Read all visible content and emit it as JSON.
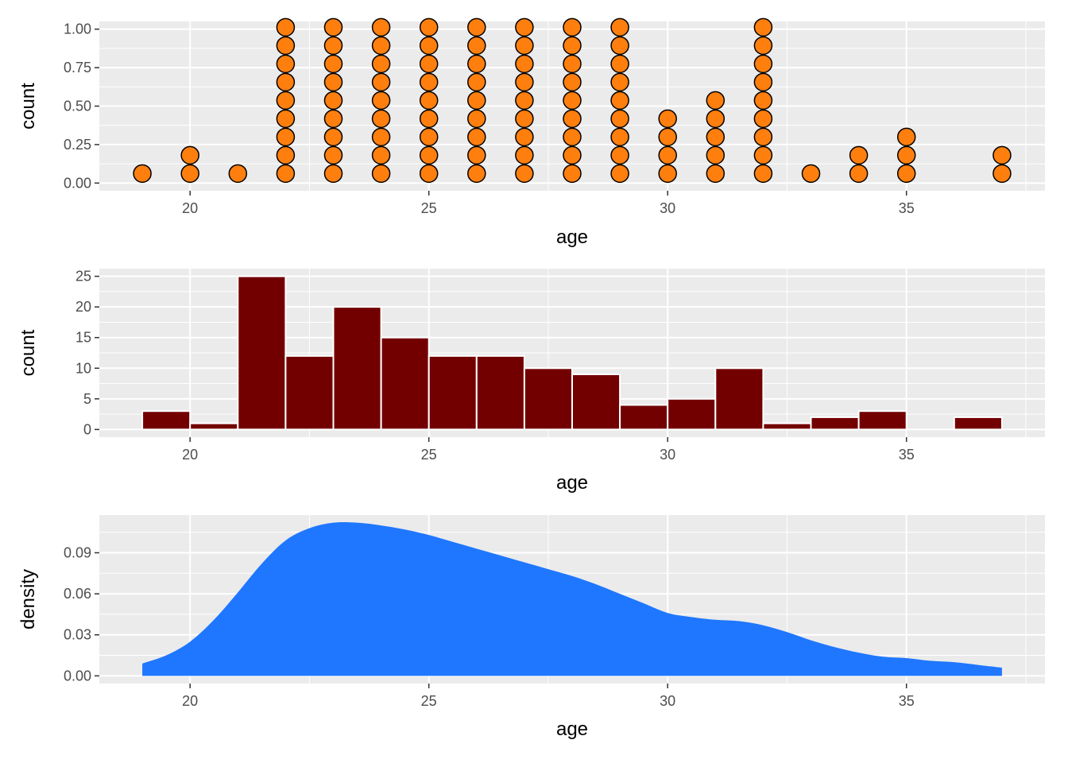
{
  "chart_data": [
    {
      "type": "dotplot",
      "xlabel": "age",
      "ylabel": "count",
      "xlim": [
        18.1,
        37.9
      ],
      "ylim": [
        -0.05,
        1.05
      ],
      "x_ticks": [
        20,
        25,
        30,
        35
      ],
      "y_ticks": [
        0,
        0.25,
        0.5,
        0.75,
        1
      ],
      "y_tick_labels": [
        "0.00",
        "0.25",
        "0.50",
        "0.75",
        "1.00"
      ],
      "grid": true,
      "fill": "#FF7F0E",
      "stroke": "#000000",
      "stacks": [
        {
          "x": 19,
          "count": 1
        },
        {
          "x": 20,
          "count": 2
        },
        {
          "x": 21,
          "count": 1
        },
        {
          "x": 22,
          "count": 9
        },
        {
          "x": 23,
          "count": 9
        },
        {
          "x": 24,
          "count": 9
        },
        {
          "x": 25,
          "count": 9
        },
        {
          "x": 26,
          "count": 9
        },
        {
          "x": 27,
          "count": 9
        },
        {
          "x": 28,
          "count": 9
        },
        {
          "x": 29,
          "count": 9
        },
        {
          "x": 30,
          "count": 4
        },
        {
          "x": 31,
          "count": 5
        },
        {
          "x": 32,
          "count": 9
        },
        {
          "x": 33,
          "count": 1
        },
        {
          "x": 34,
          "count": 2
        },
        {
          "x": 35,
          "count": 3
        },
        {
          "x": 37,
          "count": 2
        }
      ]
    },
    {
      "type": "bar",
      "xlabel": "age",
      "ylabel": "count",
      "xlim": [
        18.1,
        37.9
      ],
      "ylim": [
        -1.25,
        26.25
      ],
      "x_ticks": [
        20,
        25,
        30,
        35
      ],
      "y_ticks": [
        0,
        5,
        10,
        15,
        20,
        25
      ],
      "y_tick_labels": [
        "0",
        "5",
        "10",
        "15",
        "20",
        "25"
      ],
      "grid": true,
      "fill": "#730000",
      "stroke": "#FFFFFF",
      "bins": [
        {
          "x0": 19,
          "x1": 20,
          "count": 3
        },
        {
          "x0": 20,
          "x1": 21,
          "count": 1
        },
        {
          "x0": 21,
          "x1": 22,
          "count": 25
        },
        {
          "x0": 22,
          "x1": 23,
          "count": 12
        },
        {
          "x0": 23,
          "x1": 24,
          "count": 20
        },
        {
          "x0": 24,
          "x1": 25,
          "count": 15
        },
        {
          "x0": 25,
          "x1": 26,
          "count": 12
        },
        {
          "x0": 26,
          "x1": 27,
          "count": 12
        },
        {
          "x0": 27,
          "x1": 28,
          "count": 10
        },
        {
          "x0": 28,
          "x1": 29,
          "count": 9
        },
        {
          "x0": 29,
          "x1": 30,
          "count": 4
        },
        {
          "x0": 30,
          "x1": 31,
          "count": 5
        },
        {
          "x0": 31,
          "x1": 32,
          "count": 10
        },
        {
          "x0": 32,
          "x1": 33,
          "count": 1
        },
        {
          "x0": 33,
          "x1": 34,
          "count": 2
        },
        {
          "x0": 34,
          "x1": 35,
          "count": 3
        },
        {
          "x0": 35,
          "x1": 36,
          "count": 0
        },
        {
          "x0": 36,
          "x1": 37,
          "count": 2
        }
      ]
    },
    {
      "type": "area",
      "xlabel": "age",
      "ylabel": "density",
      "xlim": [
        18.1,
        37.9
      ],
      "ylim": [
        -0.0056,
        0.1176
      ],
      "x_ticks": [
        20,
        25,
        30,
        35
      ],
      "y_ticks": [
        0,
        0.03,
        0.06,
        0.09
      ],
      "y_tick_labels": [
        "0.00",
        "0.03",
        "0.06",
        "0.09"
      ],
      "grid": true,
      "fill": "#1F77FF",
      "x": [
        19,
        19.5,
        20,
        20.5,
        21,
        21.5,
        22,
        22.5,
        23,
        23.5,
        24,
        24.5,
        25,
        25.5,
        26,
        26.5,
        27,
        27.5,
        28,
        28.5,
        29,
        29.5,
        30,
        30.5,
        31,
        31.5,
        32,
        32.5,
        33,
        33.5,
        34,
        34.5,
        35,
        35.5,
        36,
        36.5,
        37
      ],
      "y": [
        0.009,
        0.015,
        0.025,
        0.041,
        0.061,
        0.082,
        0.099,
        0.108,
        0.112,
        0.112,
        0.11,
        0.107,
        0.103,
        0.098,
        0.093,
        0.088,
        0.083,
        0.078,
        0.073,
        0.067,
        0.06,
        0.053,
        0.046,
        0.043,
        0.041,
        0.04,
        0.037,
        0.032,
        0.026,
        0.021,
        0.017,
        0.014,
        0.013,
        0.011,
        0.01,
        0.008,
        0.006
      ]
    }
  ]
}
